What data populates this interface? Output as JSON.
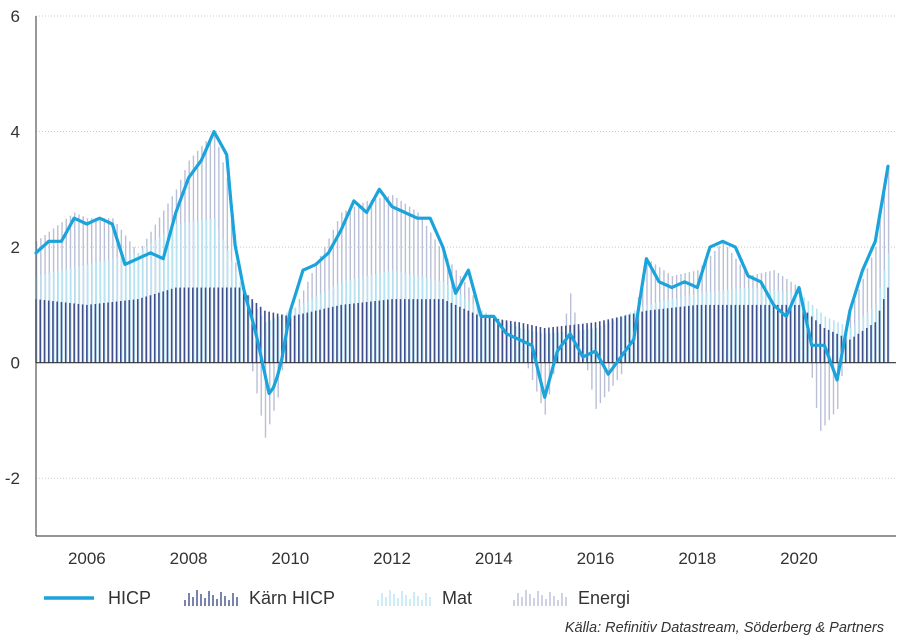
{
  "chart_data": {
    "type": "line+bar",
    "x_axis": {
      "ticks": [
        "2006",
        "2008",
        "2010",
        "2012",
        "2014",
        "2016",
        "2018",
        "2020"
      ],
      "range": [
        2005.0,
        2021.75
      ]
    },
    "y_axis": {
      "ticks": [
        "6",
        "4",
        "2",
        "0",
        "-2"
      ],
      "range": [
        -3,
        6
      ],
      "gridlines": [
        2,
        4,
        6,
        -2
      ]
    },
    "legend": [
      {
        "key": "hicp",
        "label": "HICP"
      },
      {
        "key": "core",
        "label": "Kärn HICP"
      },
      {
        "key": "food",
        "label": "Mat"
      },
      {
        "key": "energy",
        "label": "Energi"
      }
    ],
    "series": {
      "hicp": {
        "name": "HICP",
        "points": [
          [
            2005.0,
            1.9
          ],
          [
            2005.25,
            2.1
          ],
          [
            2005.5,
            2.1
          ],
          [
            2005.75,
            2.5
          ],
          [
            2006.0,
            2.4
          ],
          [
            2006.25,
            2.5
          ],
          [
            2006.5,
            2.4
          ],
          [
            2006.75,
            1.7
          ],
          [
            2007.0,
            1.8
          ],
          [
            2007.25,
            1.9
          ],
          [
            2007.5,
            1.8
          ],
          [
            2007.75,
            2.6
          ],
          [
            2008.0,
            3.2
          ],
          [
            2008.25,
            3.5
          ],
          [
            2008.5,
            4.0
          ],
          [
            2008.75,
            3.6
          ],
          [
            2008.9,
            2.1
          ],
          [
            2009.1,
            1.2
          ],
          [
            2009.3,
            0.6
          ],
          [
            2009.45,
            0.0
          ],
          [
            2009.6,
            -0.6
          ],
          [
            2009.8,
            -0.1
          ],
          [
            2010.0,
            0.9
          ],
          [
            2010.25,
            1.6
          ],
          [
            2010.5,
            1.7
          ],
          [
            2010.75,
            1.9
          ],
          [
            2011.0,
            2.3
          ],
          [
            2011.25,
            2.8
          ],
          [
            2011.5,
            2.6
          ],
          [
            2011.75,
            3.0
          ],
          [
            2012.0,
            2.7
          ],
          [
            2012.25,
            2.6
          ],
          [
            2012.5,
            2.5
          ],
          [
            2012.75,
            2.5
          ],
          [
            2013.0,
            2.0
          ],
          [
            2013.25,
            1.2
          ],
          [
            2013.5,
            1.6
          ],
          [
            2013.75,
            0.8
          ],
          [
            2014.0,
            0.8
          ],
          [
            2014.25,
            0.5
          ],
          [
            2014.5,
            0.4
          ],
          [
            2014.75,
            0.3
          ],
          [
            2015.0,
            -0.6
          ],
          [
            2015.25,
            0.2
          ],
          [
            2015.5,
            0.5
          ],
          [
            2015.75,
            0.1
          ],
          [
            2016.0,
            0.2
          ],
          [
            2016.25,
            -0.2
          ],
          [
            2016.5,
            0.1
          ],
          [
            2016.75,
            0.4
          ],
          [
            2017.0,
            1.8
          ],
          [
            2017.25,
            1.4
          ],
          [
            2017.5,
            1.3
          ],
          [
            2017.75,
            1.4
          ],
          [
            2018.0,
            1.3
          ],
          [
            2018.25,
            2.0
          ],
          [
            2018.5,
            2.1
          ],
          [
            2018.75,
            2.0
          ],
          [
            2019.0,
            1.5
          ],
          [
            2019.25,
            1.4
          ],
          [
            2019.5,
            1.0
          ],
          [
            2019.75,
            0.8
          ],
          [
            2020.0,
            1.3
          ],
          [
            2020.25,
            0.3
          ],
          [
            2020.5,
            0.3
          ],
          [
            2020.75,
            -0.3
          ],
          [
            2021.0,
            0.9
          ],
          [
            2021.25,
            1.6
          ],
          [
            2021.5,
            2.1
          ],
          [
            2021.75,
            3.4
          ]
        ]
      },
      "core": {
        "name": "Kärn HICP",
        "points": [
          [
            2005.0,
            1.1
          ],
          [
            2006.0,
            1.0
          ],
          [
            2007.0,
            1.1
          ],
          [
            2007.75,
            1.3
          ],
          [
            2008.5,
            1.3
          ],
          [
            2009.0,
            1.3
          ],
          [
            2009.5,
            0.9
          ],
          [
            2010.0,
            0.8
          ],
          [
            2011.0,
            1.0
          ],
          [
            2012.0,
            1.1
          ],
          [
            2013.0,
            1.1
          ],
          [
            2013.75,
            0.8
          ],
          [
            2014.5,
            0.7
          ],
          [
            2015.0,
            0.6
          ],
          [
            2016.0,
            0.7
          ],
          [
            2017.0,
            0.9
          ],
          [
            2018.0,
            1.0
          ],
          [
            2019.0,
            1.0
          ],
          [
            2020.0,
            1.0
          ],
          [
            2020.5,
            0.6
          ],
          [
            2021.0,
            0.4
          ],
          [
            2021.5,
            0.7
          ],
          [
            2021.75,
            1.3
          ]
        ]
      },
      "food": {
        "name": "Mat",
        "points": [
          [
            2005.0,
            1.5
          ],
          [
            2006.0,
            1.7
          ],
          [
            2007.0,
            1.9
          ],
          [
            2007.75,
            2.4
          ],
          [
            2008.5,
            2.5
          ],
          [
            2009.0,
            1.4
          ],
          [
            2009.5,
            0.7
          ],
          [
            2010.0,
            0.9
          ],
          [
            2011.0,
            1.4
          ],
          [
            2012.0,
            1.6
          ],
          [
            2013.0,
            1.4
          ],
          [
            2013.75,
            0.9
          ],
          [
            2014.5,
            0.6
          ],
          [
            2015.0,
            0.5
          ],
          [
            2016.0,
            0.6
          ],
          [
            2017.0,
            1.0
          ],
          [
            2018.0,
            1.2
          ],
          [
            2019.0,
            1.3
          ],
          [
            2020.0,
            1.2
          ],
          [
            2020.5,
            0.8
          ],
          [
            2021.0,
            0.6
          ],
          [
            2021.5,
            1.0
          ],
          [
            2021.75,
            1.9
          ]
        ]
      },
      "energy": {
        "name": "Energi",
        "points": [
          [
            2005.0,
            2.1
          ],
          [
            2005.75,
            2.6
          ],
          [
            2006.0,
            2.5
          ],
          [
            2006.5,
            2.5
          ],
          [
            2007.0,
            1.9
          ],
          [
            2007.75,
            3.0
          ],
          [
            2008.0,
            3.5
          ],
          [
            2008.5,
            4.0
          ],
          [
            2008.75,
            3.2
          ],
          [
            2009.0,
            1.0
          ],
          [
            2009.5,
            -1.3
          ],
          [
            2009.75,
            -0.6
          ],
          [
            2010.0,
            0.8
          ],
          [
            2010.5,
            1.7
          ],
          [
            2011.0,
            2.6
          ],
          [
            2011.5,
            2.8
          ],
          [
            2012.0,
            2.9
          ],
          [
            2012.5,
            2.6
          ],
          [
            2013.0,
            1.9
          ],
          [
            2013.5,
            1.3
          ],
          [
            2014.0,
            0.5
          ],
          [
            2014.5,
            0.3
          ],
          [
            2015.0,
            -0.9
          ],
          [
            2015.5,
            1.2
          ],
          [
            2016.0,
            -0.8
          ],
          [
            2016.5,
            -0.2
          ],
          [
            2017.0,
            1.8
          ],
          [
            2017.5,
            1.5
          ],
          [
            2018.0,
            1.6
          ],
          [
            2018.5,
            2.1
          ],
          [
            2019.0,
            1.5
          ],
          [
            2019.5,
            1.6
          ],
          [
            2020.0,
            1.3
          ],
          [
            2020.4,
            -1.2
          ],
          [
            2020.75,
            -0.8
          ],
          [
            2021.0,
            0.9
          ],
          [
            2021.5,
            2.0
          ],
          [
            2021.75,
            3.4
          ]
        ]
      }
    },
    "colors": {
      "hicp": "#1ba3db",
      "core": "#3f4f8c",
      "food": "#b7e3f3",
      "energy": "#b9bfd6",
      "grid": "#c8c8c8",
      "axis": "#555555"
    }
  },
  "source": "Källa: Refinitiv Datastream, Söderberg & Partners"
}
